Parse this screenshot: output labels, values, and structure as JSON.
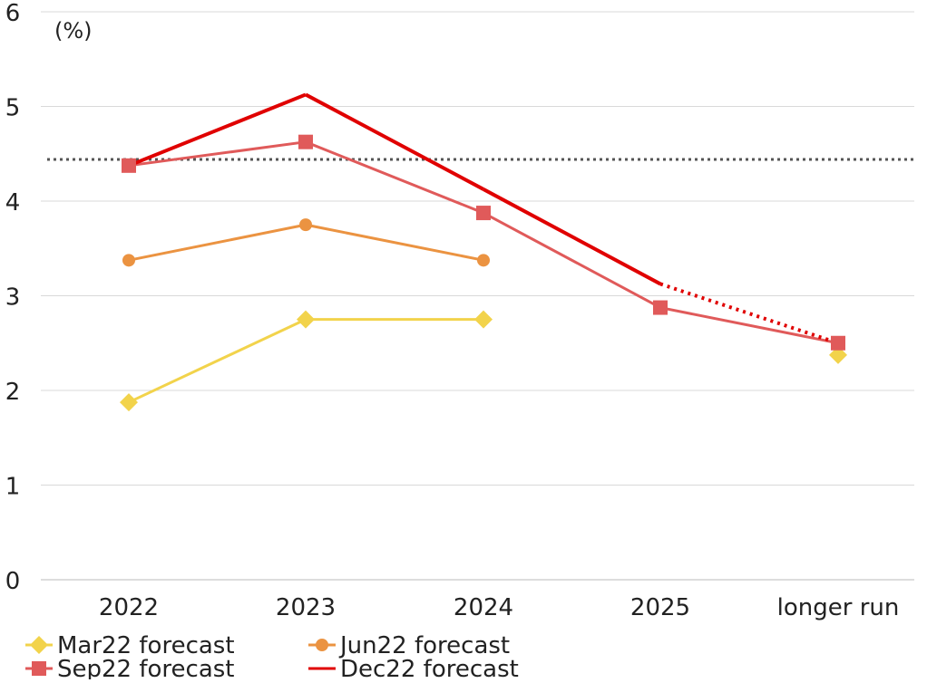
{
  "chart_data": {
    "type": "line",
    "unit_label": "(%)",
    "categories": [
      "2022",
      "2023",
      "2024",
      "2025",
      "longer run"
    ],
    "ylim": [
      0,
      6
    ],
    "yticks": [
      "0",
      "1",
      "2",
      "3",
      "4",
      "5",
      "6"
    ],
    "grid": true,
    "reference_line": {
      "value": 4.44,
      "style": "dotted",
      "color": "#555555"
    },
    "legend_position": "bottom",
    "series": [
      {
        "name": "Mar22 forecast",
        "color": "#F2D34B",
        "marker": "diamond",
        "values": [
          1.875,
          2.75,
          2.75,
          null,
          2.375
        ],
        "connect_to_longer_run": false
      },
      {
        "name": "Jun22 forecast",
        "color": "#EB9341",
        "marker": "circle",
        "values": [
          3.375,
          3.75,
          3.375,
          null,
          null
        ],
        "connect_to_longer_run": false
      },
      {
        "name": "Sep22 forecast",
        "color": "#E05A5A",
        "marker": "square",
        "values": [
          4.375,
          4.625,
          3.875,
          2.875,
          2.5
        ],
        "connect_to_longer_run": true
      },
      {
        "name": "Dec22 forecast",
        "color": "#E00000",
        "marker": "none",
        "values": [
          4.375,
          5.125,
          4.125,
          3.125,
          2.5
        ],
        "connect_to_longer_run": true,
        "longer_run_segment": "dotted"
      }
    ]
  }
}
